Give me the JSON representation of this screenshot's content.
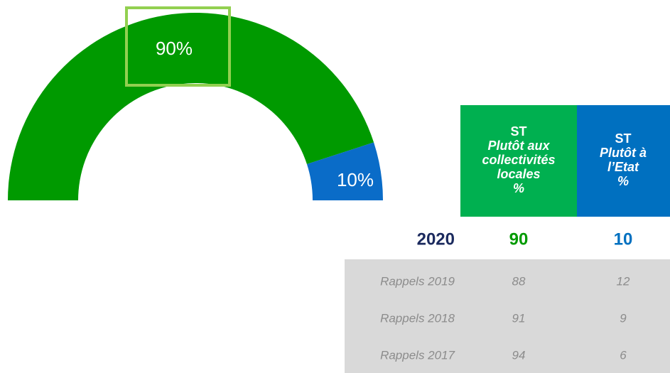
{
  "chart_data": {
    "type": "half-donut",
    "values": [
      90,
      10
    ],
    "value_labels": [
      "90%",
      "10%"
    ],
    "colors": [
      "#009a00",
      "#0a6cc8"
    ]
  },
  "table": {
    "columns": [
      {
        "lines": [
          "ST",
          "Plutôt aux",
          "collectivités",
          "locales",
          "%"
        ],
        "color": "#00b050"
      },
      {
        "lines": [
          "ST",
          "Plutôt à",
          "l’Etat",
          "%"
        ],
        "color": "#0070c0"
      }
    ],
    "current": [
      "2020",
      90,
      10
    ],
    "rows": [
      [
        "Rappels 2019",
        88,
        12
      ],
      [
        "Rappels 2018",
        91,
        9
      ],
      [
        "Rappels 2017",
        94,
        6
      ]
    ]
  }
}
